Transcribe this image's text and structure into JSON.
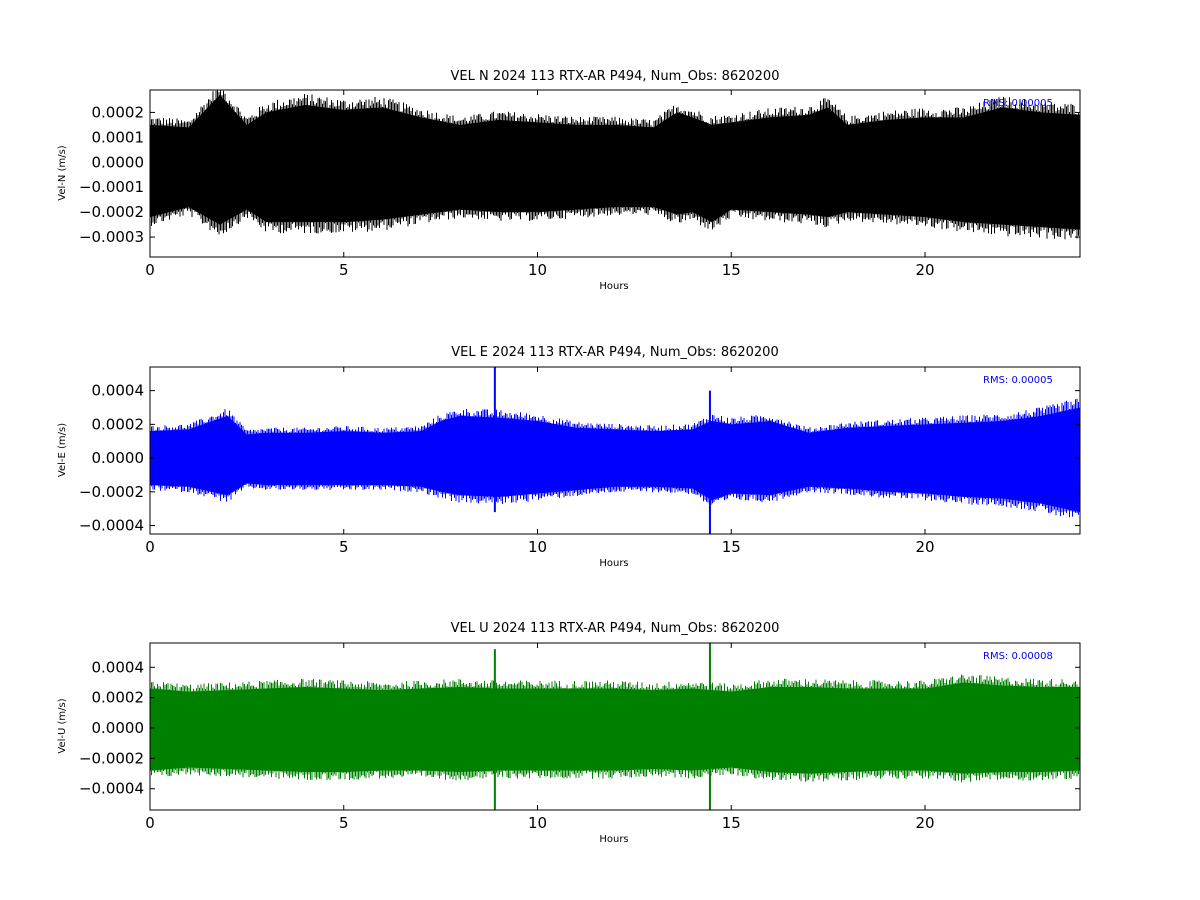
{
  "figure": {
    "x_ticks": [
      0,
      5,
      10,
      15,
      20
    ]
  },
  "chart_data": [
    {
      "type": "line",
      "title": "VEL N 2024 113 RTX-AR  P494, Num_Obs: 8620200",
      "xlabel": "Hours",
      "ylabel": "Vel-N (m/s)",
      "xlim": [
        0,
        24
      ],
      "ylim": [
        -0.00038,
        0.00029
      ],
      "y_ticks": [
        -0.0003,
        -0.0002,
        -0.0001,
        0.0,
        0.0001,
        0.0002
      ],
      "y_tick_labels": [
        "−0.0003",
        "−0.0002",
        "−0.0001",
        "0.0000",
        "0.0001",
        "0.0002"
      ],
      "annotation": "RMS:  0.00005",
      "color": "#000000",
      "series": [
        {
          "x": [
            0,
            1,
            1.8,
            2.5,
            3,
            4,
            5,
            6,
            7,
            8,
            9,
            10,
            11,
            12,
            13,
            13.6,
            14,
            14.5,
            15,
            16,
            17,
            17.5,
            18,
            19,
            20,
            21,
            22,
            23,
            24
          ],
          "upper": [
            0.00015,
            0.00014,
            0.00027,
            0.00015,
            0.0002,
            0.00023,
            0.00021,
            0.00022,
            0.00018,
            0.00015,
            0.00017,
            0.00016,
            0.00015,
            0.00015,
            0.00014,
            0.0002,
            0.00018,
            0.00015,
            0.00016,
            0.00018,
            0.00019,
            0.00022,
            0.00015,
            0.00017,
            0.00018,
            0.00018,
            0.00022,
            0.0002,
            0.00019
          ],
          "lower": [
            -0.00022,
            -0.00018,
            -0.00025,
            -0.00019,
            -0.00024,
            -0.00024,
            -0.00024,
            -0.00023,
            -0.00021,
            -0.00019,
            -0.0002,
            -0.0002,
            -0.00019,
            -0.00018,
            -0.00018,
            -0.00021,
            -0.0002,
            -0.00024,
            -0.00019,
            -0.0002,
            -0.00021,
            -0.00022,
            -0.0002,
            -0.00021,
            -0.00022,
            -0.00024,
            -0.00025,
            -0.00026,
            -0.00027
          ]
        }
      ]
    },
    {
      "type": "line",
      "title": "VEL E 2024 113 RTX-AR  P494, Num_Obs: 8620200",
      "xlabel": "Hours",
      "ylabel": "Vel-E (m/s)",
      "xlim": [
        0,
        24
      ],
      "ylim": [
        -0.00045,
        0.00054
      ],
      "y_ticks": [
        -0.0004,
        -0.0002,
        0.0,
        0.0002,
        0.0004
      ],
      "y_tick_labels": [
        "−0.0004",
        "−0.0002",
        "0.0000",
        "0.0002",
        "0.0004"
      ],
      "annotation": "RMS:  0.00005",
      "color": "#0000ff",
      "series": [
        {
          "x": [
            0,
            1,
            2,
            2.5,
            3,
            4,
            5,
            6,
            7,
            7.5,
            8,
            9,
            10,
            11,
            12,
            13,
            14,
            14.5,
            15,
            16,
            17,
            18,
            19,
            20,
            21,
            22,
            23,
            24
          ],
          "upper": [
            0.00016,
            0.00017,
            0.00025,
            0.00014,
            0.00015,
            0.00015,
            0.00016,
            0.00015,
            0.00016,
            0.00022,
            0.00025,
            0.00024,
            0.00022,
            0.00018,
            0.00017,
            0.00016,
            0.00017,
            0.00022,
            0.0002,
            0.00022,
            0.00015,
            0.00018,
            0.00019,
            0.0002,
            0.00021,
            0.00022,
            0.00025,
            0.0003
          ],
          "lower": [
            -0.00016,
            -0.00017,
            -0.00022,
            -0.00015,
            -0.00016,
            -0.00016,
            -0.00016,
            -0.00016,
            -0.00017,
            -0.0002,
            -0.00022,
            -0.00023,
            -0.00021,
            -0.00019,
            -0.00017,
            -0.00017,
            -0.00018,
            -0.00025,
            -0.00021,
            -0.00022,
            -0.00017,
            -0.00018,
            -0.0002,
            -0.00021,
            -0.00023,
            -0.00024,
            -0.00027,
            -0.00032
          ]
        }
      ],
      "spikes": [
        {
          "x": 8.9,
          "y_min": -0.00032,
          "y_max": 0.00054
        },
        {
          "x": 14.45,
          "y_min": -0.00045,
          "y_max": 0.0004
        }
      ]
    },
    {
      "type": "line",
      "title": "VEL U 2024 113 RTX-AR  P494, Num_Obs: 8620200",
      "xlabel": "Hours",
      "ylabel": "Vel-U (m/s)",
      "xlim": [
        0,
        24
      ],
      "ylim": [
        -0.00054,
        0.00056
      ],
      "y_ticks": [
        -0.0004,
        -0.0002,
        0.0,
        0.0002,
        0.0004
      ],
      "y_tick_labels": [
        "−0.0004",
        "−0.0002",
        "0.0000",
        "0.0002",
        "0.0004"
      ],
      "annotation": "RMS:  0.00008",
      "color": "#008000",
      "series": [
        {
          "x": [
            0,
            1,
            2,
            3,
            4,
            5,
            6,
            7,
            8,
            9,
            10,
            11,
            12,
            13,
            14,
            15,
            16,
            17,
            18,
            19,
            20,
            21,
            22,
            23,
            24
          ],
          "upper": [
            0.00026,
            0.00024,
            0.00025,
            0.00026,
            0.00027,
            0.00026,
            0.00025,
            0.00026,
            0.00027,
            0.00026,
            0.00026,
            0.00026,
            0.00026,
            0.00025,
            0.00026,
            0.00024,
            0.00027,
            0.00027,
            0.00026,
            0.00026,
            0.00026,
            0.0003,
            0.00028,
            0.00027,
            0.00027
          ],
          "lower": [
            -0.00028,
            -0.00026,
            -0.00027,
            -0.00028,
            -0.00029,
            -0.00029,
            -0.00028,
            -0.00028,
            -0.00029,
            -0.00028,
            -0.00028,
            -0.00028,
            -0.00028,
            -0.00027,
            -0.00028,
            -0.00026,
            -0.00029,
            -0.0003,
            -0.00029,
            -0.00028,
            -0.00028,
            -0.0003,
            -0.00029,
            -0.00029,
            -0.00028
          ]
        }
      ],
      "spikes": [
        {
          "x": 8.9,
          "y_min": -0.00054,
          "y_max": 0.00052
        },
        {
          "x": 14.45,
          "y_min": -0.00054,
          "y_max": 0.00056
        }
      ]
    }
  ]
}
